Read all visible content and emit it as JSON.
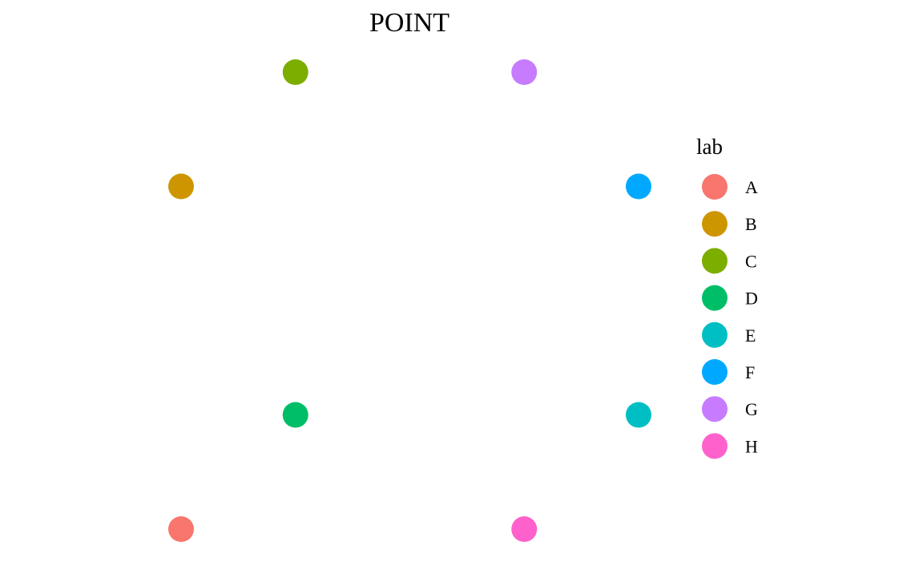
{
  "chart_data": {
    "type": "scatter",
    "title": "POINT",
    "xlabel": "",
    "ylabel": "",
    "grid": false,
    "axes_visible": false,
    "xlim": [
      1,
      5
    ],
    "ylim": [
      1,
      5
    ],
    "points": [
      {
        "label": "A",
        "x": 1,
        "y": 1,
        "color": "#F8766D"
      },
      {
        "label": "B",
        "x": 1,
        "y": 4,
        "color": "#CD9600"
      },
      {
        "label": "C",
        "x": 2,
        "y": 5,
        "color": "#7CAE00"
      },
      {
        "label": "D",
        "x": 2,
        "y": 2,
        "color": "#00BE67"
      },
      {
        "label": "E",
        "x": 5,
        "y": 2,
        "color": "#00BFC4"
      },
      {
        "label": "F",
        "x": 5,
        "y": 4,
        "color": "#00A9FF"
      },
      {
        "label": "G",
        "x": 4,
        "y": 5,
        "color": "#C77CFF"
      },
      {
        "label": "H",
        "x": 4,
        "y": 1,
        "color": "#FF61CC"
      }
    ],
    "legend": {
      "title": "lab",
      "placement": "right",
      "entries": [
        {
          "label": "A",
          "color": "#F8766D"
        },
        {
          "label": "B",
          "color": "#CD9600"
        },
        {
          "label": "C",
          "color": "#7CAE00"
        },
        {
          "label": "D",
          "color": "#00BE67"
        },
        {
          "label": "E",
          "color": "#00BFC4"
        },
        {
          "label": "F",
          "color": "#00A9FF"
        },
        {
          "label": "G",
          "color": "#C77CFF"
        },
        {
          "label": "H",
          "color": "#FF61CC"
        }
      ]
    }
  }
}
